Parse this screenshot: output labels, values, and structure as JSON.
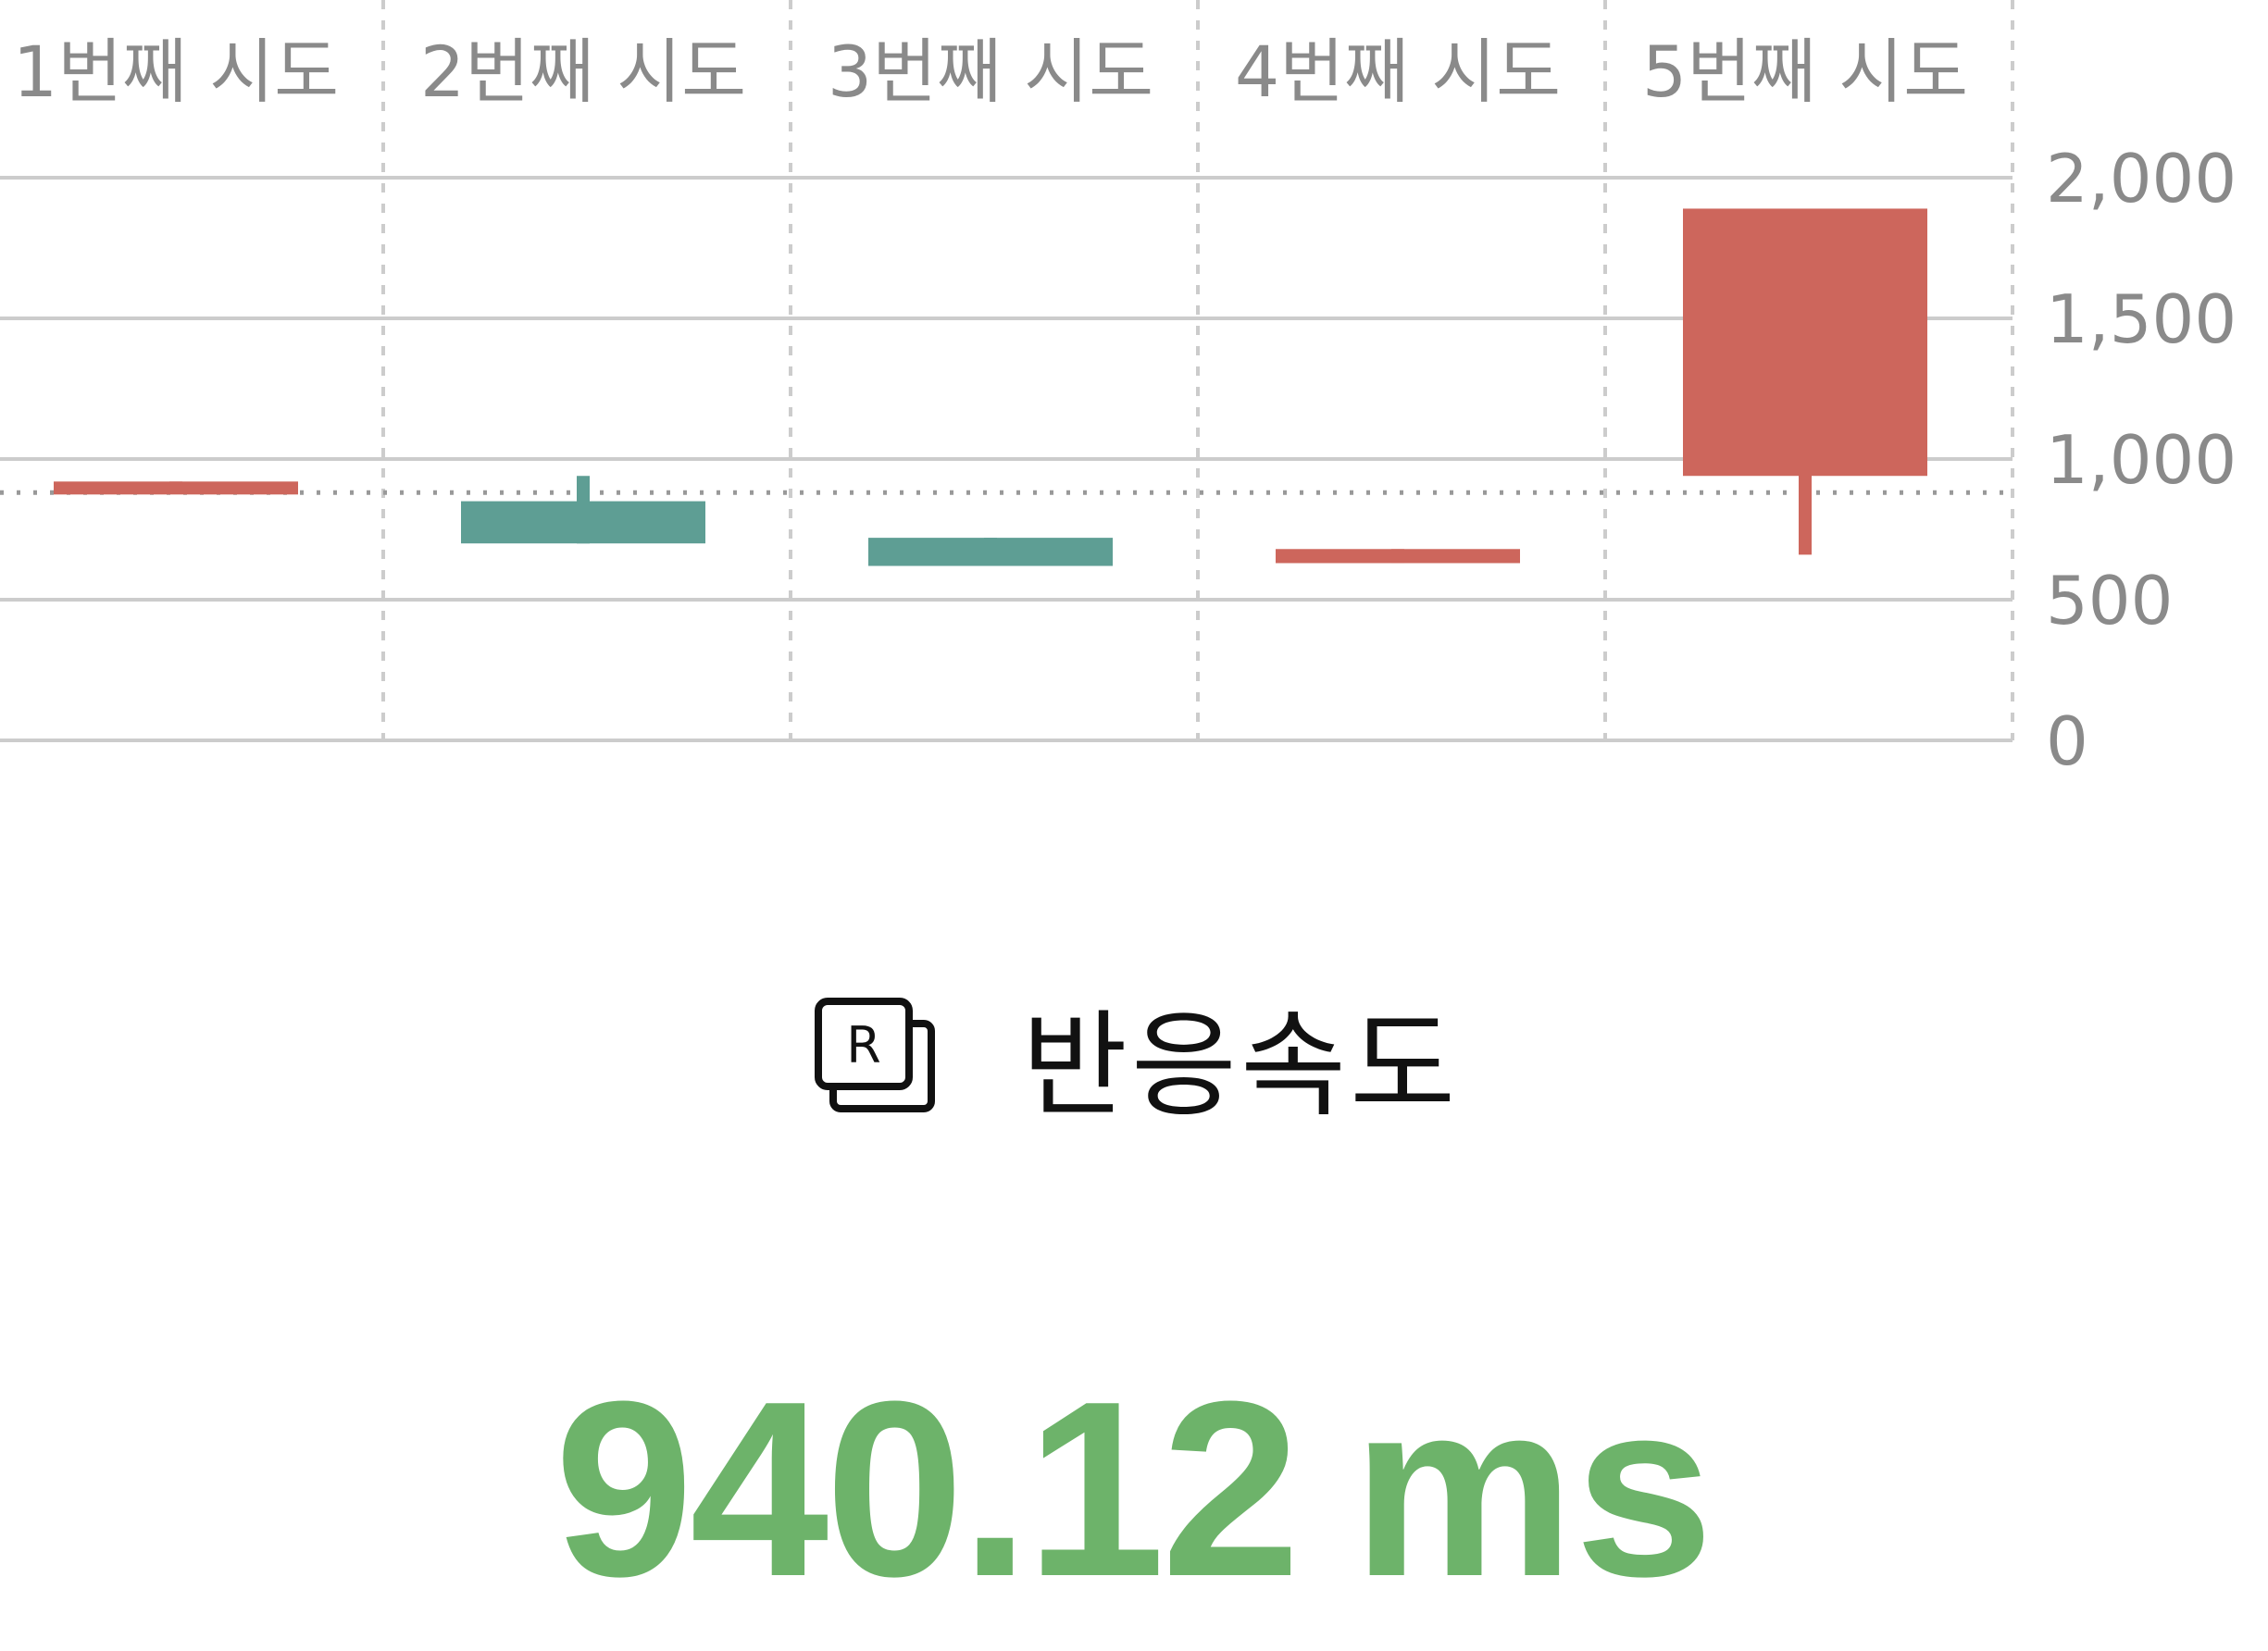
{
  "chart_data": {
    "type": "candlestick",
    "categories": [
      "1번째 시도",
      "2번째 시도",
      "3번째 시도",
      "4번째 시도",
      "5번째 시도"
    ],
    "candles": [
      {
        "open": 920,
        "close": 900,
        "high": 920,
        "low": 900,
        "direction": "down"
      },
      {
        "open": 700,
        "close": 850,
        "high": 940,
        "low": 700,
        "direction": "up"
      },
      {
        "open": 620,
        "close": 720,
        "high": 720,
        "low": 620,
        "direction": "up"
      },
      {
        "open": 680,
        "close": 630,
        "high": 680,
        "low": 630,
        "direction": "down"
      },
      {
        "open": 1890,
        "close": 940,
        "high": 1890,
        "low": 660,
        "direction": "down"
      }
    ],
    "reference_line": 940,
    "y_ticks": [
      "2,000",
      "1,500",
      "1,000",
      "500",
      "0"
    ],
    "y_tick_values": [
      2000,
      1500,
      1000,
      500,
      0
    ],
    "ylim": [
      0,
      2000
    ],
    "y_axis_side": "right",
    "x_axis_side": "top",
    "grid": true,
    "colors": {
      "up": "#5e9e94",
      "down": "#cd665c",
      "grid": "#cccccc",
      "tick_text": "#8a8a8a"
    }
  },
  "metric": {
    "label": "반응속도",
    "icon": "reaction-time-icon",
    "value": "940.12",
    "unit": "ms",
    "value_color": "#6db36a"
  }
}
